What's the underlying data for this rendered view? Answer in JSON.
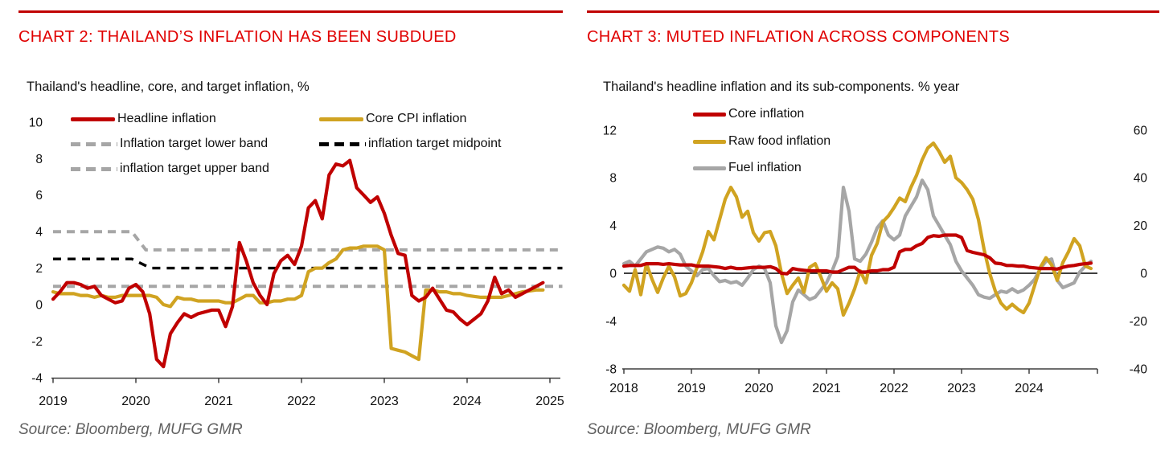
{
  "page": {
    "background": "#ffffff"
  },
  "colors": {
    "title_red": "#E00000",
    "rule_red": "#C00000",
    "line_red": "#C00000",
    "line_gold": "#D0A321",
    "line_gray": "#A6A6A6",
    "line_black": "#000000",
    "axis": "#3f3f3f",
    "source_gray": "#606060"
  },
  "chart_data": [
    {
      "type": "line",
      "title": "CHART 2: THAILAND’S INFLATION HAS BEEN SUBDUED",
      "subtitle": "Thailand's headline, core, and target inflation, %",
      "source": "Source: Bloomberg, MUFG GMR",
      "xlabel": "",
      "ylabel": "%",
      "x_tick_labels": [
        "2019",
        "2020",
        "2021",
        "2022",
        "2023",
        "2024",
        "2025"
      ],
      "y_tick_labels": [
        "10",
        "8",
        "6",
        "4",
        "2",
        "0",
        "-2",
        "-4"
      ],
      "y_ticks": [
        10,
        8,
        6,
        4,
        2,
        0,
        -2,
        -4
      ],
      "ylim": [
        -4,
        10
      ],
      "x_start_year": 2019,
      "x_step": "monthly",
      "grid": false,
      "legend_position": "top",
      "series": [
        {
          "name": "Headline inflation",
          "color": "#C00000",
          "style": "solid",
          "axis": "left",
          "values": [
            0.3,
            0.7,
            1.2,
            1.2,
            1.1,
            0.9,
            1.0,
            0.5,
            0.3,
            0.1,
            0.2,
            0.9,
            1.1,
            0.7,
            -0.5,
            -3.0,
            -3.4,
            -1.6,
            -1.0,
            -0.5,
            -0.7,
            -0.5,
            -0.4,
            -0.3,
            -0.3,
            -1.2,
            -0.1,
            3.4,
            2.4,
            1.2,
            0.5,
            0.0,
            1.7,
            2.4,
            2.7,
            2.2,
            3.2,
            5.3,
            5.7,
            4.7,
            7.1,
            7.7,
            7.6,
            7.9,
            6.4,
            6.0,
            5.6,
            5.9,
            5.0,
            3.8,
            2.8,
            2.7,
            0.5,
            0.2,
            0.4,
            0.9,
            0.3,
            -0.3,
            -0.4,
            -0.8,
            -1.1,
            -0.8,
            -0.5,
            0.2,
            1.5,
            0.6,
            0.8,
            0.4,
            0.6,
            0.8,
            1.0,
            1.2
          ]
        },
        {
          "name": "Core CPI inflation",
          "color": "#D0A321",
          "style": "solid",
          "axis": "left",
          "values": [
            0.7,
            0.6,
            0.6,
            0.6,
            0.5,
            0.5,
            0.4,
            0.5,
            0.4,
            0.4,
            0.5,
            0.5,
            0.5,
            0.5,
            0.5,
            0.4,
            0.0,
            -0.1,
            0.4,
            0.3,
            0.3,
            0.2,
            0.2,
            0.2,
            0.2,
            0.1,
            0.1,
            0.3,
            0.5,
            0.5,
            0.1,
            0.1,
            0.2,
            0.2,
            0.3,
            0.3,
            0.5,
            1.8,
            2.0,
            2.0,
            2.3,
            2.5,
            3.0,
            3.1,
            3.1,
            3.2,
            3.2,
            3.2,
            3.0,
            -2.4,
            -2.5,
            -2.6,
            -2.8,
            -3.0,
            0.8,
            0.8,
            0.7,
            0.7,
            0.6,
            0.6,
            0.5,
            0.45,
            0.4,
            0.4,
            0.4,
            0.4,
            0.5,
            0.6,
            0.7,
            0.75,
            0.8,
            0.8
          ]
        },
        {
          "name": "Inflation target lower band",
          "color": "#A6A6A6",
          "style": "dashed",
          "axis": "left",
          "points": [
            [
              2019.0,
              1.0
            ],
            [
              2025.15,
              1.0
            ]
          ]
        },
        {
          "name": "inflation target upper band",
          "color": "#A6A6A6",
          "style": "dashed",
          "axis": "left",
          "points": [
            [
              2019.0,
              4.0
            ],
            [
              2019.95,
              4.0
            ],
            [
              2020.12,
              3.0
            ],
            [
              2025.15,
              3.0
            ]
          ]
        },
        {
          "name": "inflation target midpoint",
          "color": "#000000",
          "style": "dashed",
          "axis": "left",
          "points": [
            [
              2019.0,
              2.5
            ],
            [
              2019.95,
              2.5
            ],
            [
              2020.18,
              2.0
            ],
            [
              2025.15,
              2.0
            ]
          ]
        }
      ]
    },
    {
      "type": "line",
      "title": "CHART 3: MUTED INFLATION ACROSS COMPONENTS",
      "subtitle": "Thailand's headline inflation and its sub-components. % year",
      "source": "Source: Bloomberg, MUFG GMR",
      "xlabel": "",
      "ylabel_left": "%",
      "ylabel_right": "%",
      "x_tick_labels": [
        "2018",
        "2019",
        "2020",
        "2021",
        "2022",
        "2023",
        "2024"
      ],
      "y_tick_labels_left": [
        "12",
        "8",
        "4",
        "0",
        "-4",
        "-8"
      ],
      "y_ticks_left": [
        12,
        8,
        4,
        0,
        -4,
        -8
      ],
      "y_tick_labels_right": [
        "60",
        "40",
        "20",
        "0",
        "-20",
        "-40"
      ],
      "y_ticks_right": [
        60,
        40,
        20,
        0,
        -20,
        -40
      ],
      "ylim_left": [
        -8,
        12
      ],
      "ylim_right": [
        -40,
        60
      ],
      "x_start_year": 2018,
      "x_step": "monthly",
      "zero_line": true,
      "grid": false,
      "legend_position": "top-left",
      "series": [
        {
          "name": "Core inflation",
          "color": "#C00000",
          "style": "solid",
          "axis": "left",
          "values": [
            0.6,
            0.65,
            0.65,
            0.65,
            0.8,
            0.8,
            0.8,
            0.75,
            0.8,
            0.75,
            0.7,
            0.7,
            0.7,
            0.6,
            0.6,
            0.6,
            0.55,
            0.5,
            0.4,
            0.5,
            0.4,
            0.4,
            0.45,
            0.5,
            0.5,
            0.5,
            0.55,
            0.4,
            0.0,
            -0.05,
            0.4,
            0.3,
            0.25,
            0.2,
            0.2,
            0.2,
            0.2,
            0.1,
            0.1,
            0.3,
            0.5,
            0.5,
            0.1,
            0.1,
            0.2,
            0.2,
            0.3,
            0.3,
            0.5,
            1.8,
            2.0,
            2.0,
            2.3,
            2.5,
            3.0,
            3.15,
            3.1,
            3.2,
            3.2,
            3.2,
            3.0,
            1.9,
            1.75,
            1.65,
            1.55,
            1.3,
            0.85,
            0.8,
            0.65,
            0.65,
            0.6,
            0.6,
            0.5,
            0.45,
            0.4,
            0.4,
            0.4,
            0.35,
            0.5,
            0.6,
            0.65,
            0.75,
            0.8,
            0.85
          ]
        },
        {
          "name": "Raw food inflation",
          "color": "#D0A321",
          "style": "solid",
          "axis": "left",
          "values": [
            -1.0,
            -1.5,
            0.3,
            -1.8,
            0.8,
            -0.5,
            -1.6,
            -0.4,
            0.6,
            -0.3,
            -1.9,
            -1.7,
            -0.8,
            0.5,
            1.8,
            3.5,
            2.8,
            4.5,
            6.2,
            7.2,
            6.4,
            4.7,
            5.2,
            3.4,
            2.7,
            3.4,
            3.5,
            2.3,
            0.0,
            -1.7,
            -1.0,
            -0.4,
            -1.6,
            0.5,
            0.8,
            -0.3,
            -1.5,
            -0.8,
            -1.3,
            -3.5,
            -2.5,
            -1.3,
            0.2,
            -0.8,
            1.5,
            2.5,
            4.3,
            4.8,
            5.5,
            6.3,
            6.0,
            7.2,
            8.2,
            9.5,
            10.5,
            10.9,
            10.2,
            9.3,
            9.8,
            8.0,
            7.6,
            7.0,
            6.2,
            4.5,
            2.0,
            0.0,
            -1.5,
            -2.5,
            -3.0,
            -2.6,
            -3.0,
            -3.3,
            -2.5,
            -1.0,
            0.5,
            1.3,
            0.7,
            -0.6,
            0.9,
            1.8,
            2.9,
            2.3,
            0.6,
            0.4
          ]
        },
        {
          "name": "Fuel inflation",
          "color": "#A6A6A6",
          "style": "solid",
          "axis": "right",
          "values": [
            4,
            5,
            3,
            6,
            9,
            10,
            11,
            10.5,
            9,
            10,
            8,
            3,
            1,
            -1,
            1.5,
            2,
            -1,
            -3.5,
            -3,
            -4,
            -3.5,
            -5,
            -2,
            1.5,
            3,
            2,
            -4,
            -22,
            -29,
            -24,
            -12,
            -7,
            -9,
            -11,
            -10,
            -7,
            -4,
            1,
            7,
            36,
            26,
            6,
            5,
            8,
            13,
            19,
            22,
            16,
            14,
            16,
            24,
            28,
            32,
            39,
            35,
            24,
            20,
            16,
            12,
            5,
            1,
            -2,
            -5,
            -9,
            -10,
            -10.5,
            -9,
            -7.5,
            -8,
            -6.5,
            -8,
            -7,
            -5,
            -2.5,
            2,
            5,
            6,
            -3,
            -6,
            -5,
            -4,
            0.5,
            3,
            5
          ]
        }
      ]
    }
  ]
}
